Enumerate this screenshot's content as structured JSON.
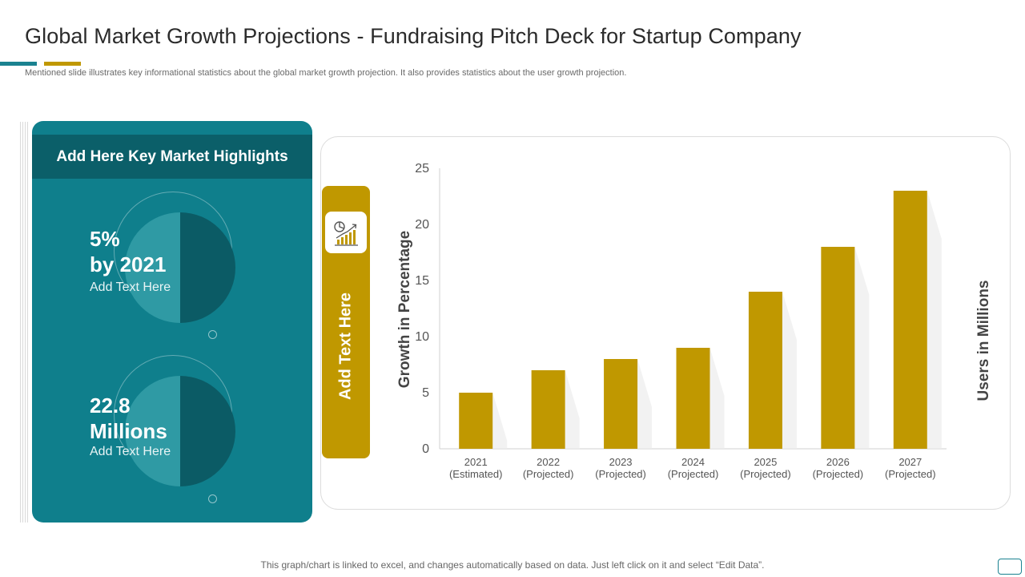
{
  "slide": {
    "title": "Global Market Growth Projections - Fundraising Pitch Deck for Startup Company",
    "subtitle": "Mentioned slide illustrates key informational statistics about the global market growth projection. It also provides statistics about the user growth projection.",
    "footer": "This graph/chart is linked to excel, and changes automatically based on data. Just left click on it and select “Edit Data”."
  },
  "highlights": {
    "heading": "Add Here Key Market Highlights",
    "items": [
      {
        "line1": "5%",
        "line2": "by 2021",
        "caption": "Add Text Here"
      },
      {
        "line1": "22.8",
        "line2": "Millions",
        "caption": "Add Text Here"
      }
    ]
  },
  "side_label": "Add Text Here",
  "colors": {
    "teal": "#0f7f8c",
    "dark_teal": "#0b5f69",
    "gold": "#c09800"
  },
  "icons": {
    "chart_icon": "pie-and-bar-growth-icon"
  },
  "chart_data": {
    "type": "bar",
    "title": "",
    "ylabel": "Growth in Percentage",
    "y2label": "Users in Millions",
    "xlabel": "",
    "ylim": [
      0,
      25
    ],
    "yticks": [
      0,
      5,
      10,
      15,
      20,
      25
    ],
    "grid": false,
    "legend": "none",
    "categories": [
      [
        "2021",
        "(Estimated)"
      ],
      [
        "2022",
        "(Projected)"
      ],
      [
        "2023",
        "(Projected)"
      ],
      [
        "2024",
        "(Projected)"
      ],
      [
        "2025",
        "(Projected)"
      ],
      [
        "2026",
        "(Projected)"
      ],
      [
        "2027",
        "(Projected)"
      ]
    ],
    "values": [
      5,
      7,
      8,
      9,
      14,
      18,
      23
    ],
    "bar_color": "#c09800"
  }
}
